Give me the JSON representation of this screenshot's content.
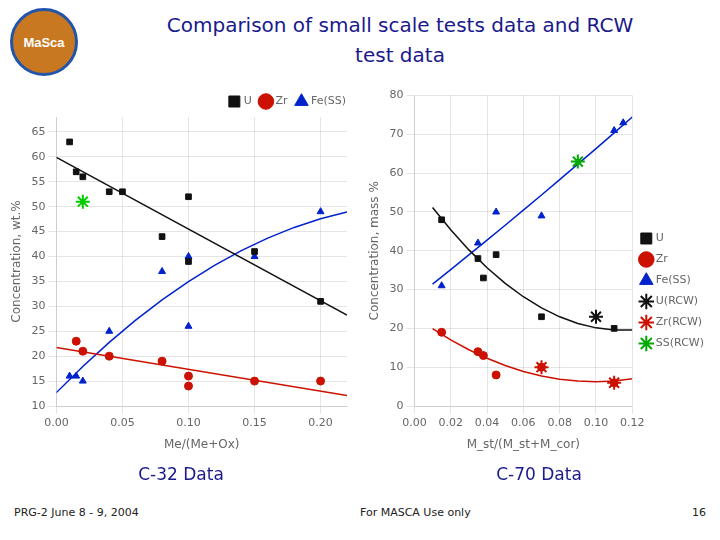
{
  "title": [
    "Comparison of small scale tests data and RCW",
    "test data"
  ],
  "annotations": [
    "MaSca",
    "PRG-2 June 8 - 9, 2004",
    "For MASCA Use only",
    "16"
  ],
  "chart_data": [
    {
      "type": "scatter",
      "title": "C-32 Data",
      "xlabel": "Me/(Me+Ox)",
      "ylabel": "Concentration, wt.%",
      "xlim": [
        0.0,
        0.22
      ],
      "ylim": [
        10,
        68
      ],
      "xticks": [
        {
          "value": 0.0,
          "label": "0.00"
        },
        {
          "value": 0.05,
          "label": "0.05"
        },
        {
          "value": 0.1,
          "label": "0.10"
        },
        {
          "value": 0.15,
          "label": "0.15"
        },
        {
          "value": 0.2,
          "label": "0.20"
        }
      ],
      "yticks": [
        10,
        15,
        20,
        25,
        30,
        35,
        40,
        45,
        50,
        55,
        60,
        65
      ],
      "grid": true,
      "legend": "upper right",
      "series": [
        {
          "type": "line",
          "color": "#111111",
          "line_style": "solid",
          "x": [
            0.0,
            0.22
          ],
          "values": [
            59.9,
            28.26
          ]
        },
        {
          "type": "line",
          "color": "#cc1100",
          "line_style": "solid",
          "x": [
            0.0,
            0.22
          ],
          "values": [
            21.73,
            12.11
          ]
        },
        {
          "type": "line",
          "color": "#0022cc",
          "line_style": "solid",
          "x": [
            0.0,
            0.02,
            0.04,
            0.06,
            0.08,
            0.1,
            0.12,
            0.14,
            0.16,
            0.18,
            0.2,
            0.22
          ],
          "values": [
            12.7,
            17.92,
            22.76,
            27.22,
            31.29,
            34.97,
            38.27,
            41.18,
            43.7,
            45.84,
            47.59,
            48.96
          ]
        },
        {
          "name": "U",
          "type": "scatter",
          "color": "#111111",
          "marker": "square",
          "x": [
            0.01,
            0.015,
            0.02,
            0.04,
            0.05,
            0.08,
            0.1,
            0.1,
            0.15,
            0.2
          ],
          "values": [
            63,
            57,
            56,
            53,
            53,
            44,
            52,
            39,
            41,
            31
          ]
        },
        {
          "name": "Zr",
          "type": "scatter",
          "color": "#cc1100",
          "marker": "circle",
          "x": [
            0.015,
            0.02,
            0.04,
            0.08,
            0.1,
            0.1,
            0.15,
            0.2
          ],
          "values": [
            23,
            21,
            20,
            19,
            16,
            14,
            15,
            15
          ]
        },
        {
          "name": "Fe(SS)",
          "type": "scatter",
          "color": "#0022cc",
          "marker": "triangle",
          "x": [
            0.01,
            0.015,
            0.02,
            0.04,
            0.08,
            0.1,
            0.1,
            0.15,
            0.2
          ],
          "values": [
            16,
            16,
            15,
            25,
            37,
            40,
            26,
            40,
            49
          ]
        },
        {
          "type": "scatter",
          "color": "#00cc00",
          "marker": "star",
          "x": [
            0.02
          ],
          "values": [
            51
          ]
        }
      ]
    },
    {
      "type": "scatter",
      "title": "C-70 Data",
      "xlabel": "M_st/(M_st+M_cor)",
      "ylabel": "Concentration, mass %",
      "xlim": [
        0.0,
        0.12
      ],
      "ylim": [
        0,
        80
      ],
      "xticks": [
        {
          "value": 0.0,
          "label": "0.00"
        },
        {
          "value": 0.02,
          "label": "0.02"
        },
        {
          "value": 0.04,
          "label": "0.04"
        },
        {
          "value": 0.06,
          "label": "0.06"
        },
        {
          "value": 0.08,
          "label": "0.08"
        },
        {
          "value": 0.1,
          "label": "0.10"
        },
        {
          "value": 0.12,
          "label": "0.12"
        }
      ],
      "yticks": [
        0,
        10,
        20,
        30,
        40,
        50,
        60,
        70,
        80
      ],
      "grid": true,
      "legend": "center right",
      "series": [
        {
          "type": "line",
          "color": "#111111",
          "line_style": "solid",
          "x": [
            0.01,
            0.02,
            0.03,
            0.04,
            0.05,
            0.06,
            0.07,
            0.08,
            0.09,
            0.1,
            0.11,
            0.12
          ],
          "values": [
            51.17,
            45.41,
            40.23,
            35.63,
            31.61,
            28.16,
            25.29,
            22.99,
            21.28,
            20.14,
            19.58,
            19.59
          ]
        },
        {
          "type": "line",
          "color": "#cc1100",
          "line_style": "solid",
          "x": [
            0.01,
            0.02,
            0.03,
            0.04,
            0.05,
            0.06,
            0.07,
            0.08,
            0.09,
            0.1,
            0.11,
            0.12
          ],
          "values": [
            19.92,
            17.03,
            14.49,
            12.29,
            10.43,
            8.91,
            7.74,
            6.91,
            6.42,
            6.28,
            6.47,
            7.02
          ]
        },
        {
          "type": "line",
          "color": "#0022cc",
          "line_style": "solid",
          "x": [
            0.01,
            0.02,
            0.03,
            0.04,
            0.05,
            0.06,
            0.07,
            0.08,
            0.09,
            0.1,
            0.11,
            0.12
          ],
          "values": [
            31.4,
            35.15,
            38.93,
            42.75,
            46.59,
            50.48,
            54.39,
            58.35,
            62.33,
            66.35,
            70.4,
            74.48
          ]
        },
        {
          "name": "U",
          "type": "scatter",
          "color": "#111111",
          "marker": "square",
          "x": [
            0.015,
            0.035,
            0.038,
            0.045,
            0.07,
            0.11
          ],
          "values": [
            48,
            38,
            33,
            39,
            23,
            20
          ]
        },
        {
          "name": "Zr",
          "type": "scatter",
          "color": "#cc1100",
          "marker": "circle",
          "x": [
            0.015,
            0.035,
            0.038,
            0.045,
            0.07,
            0.11
          ],
          "values": [
            19,
            14,
            13,
            8,
            10,
            6
          ]
        },
        {
          "name": "Fe(SS)",
          "type": "scatter",
          "color": "#0022cc",
          "marker": "triangle",
          "x": [
            0.015,
            0.035,
            0.045,
            0.07,
            0.11,
            0.115
          ],
          "values": [
            31,
            42,
            50,
            49,
            71,
            73
          ]
        },
        {
          "name": "U(RCW)",
          "type": "scatter",
          "color": "#111111",
          "marker": "star",
          "x": [
            0.1
          ],
          "values": [
            23
          ]
        },
        {
          "name": "Zr(RCW)",
          "type": "scatter",
          "color": "#cc1100",
          "marker": "star",
          "x": [
            0.07,
            0.11
          ],
          "values": [
            10,
            6
          ]
        },
        {
          "name": "SS(RCW)",
          "type": "scatter",
          "color": "#00aa00",
          "marker": "star",
          "x": [
            0.09
          ],
          "values": [
            63
          ]
        }
      ]
    }
  ]
}
